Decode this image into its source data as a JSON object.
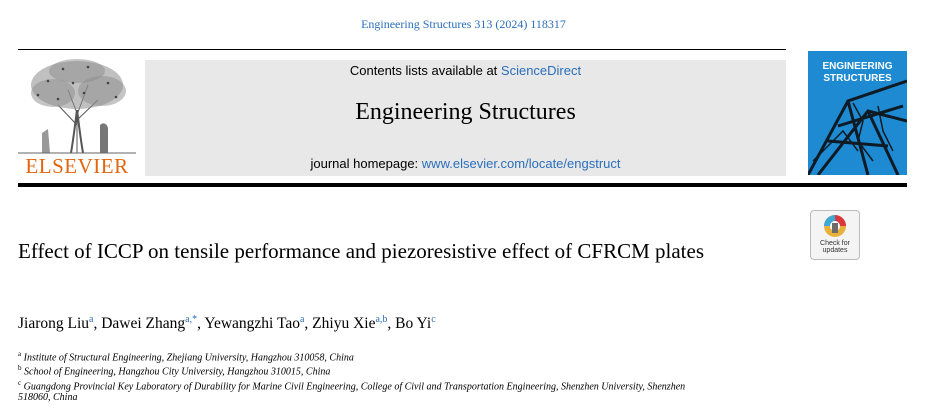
{
  "header": {
    "citation": "Engineering Structures 313 (2024) 118317",
    "contents_prefix": "Contents lists available at ",
    "contents_link": "ScienceDirect",
    "journal_name": "Engineering Structures",
    "homepage_prefix": "journal homepage: ",
    "homepage_url": "www.elsevier.com/locate/engstruct",
    "publisher": "ELSEVIER",
    "cover_title_line1": "ENGINEERING",
    "cover_title_line2": "STRUCTURES"
  },
  "crossmark": {
    "line1": "Check for",
    "line2": "updates"
  },
  "article": {
    "title": "Effect of ICCP on tensile performance and piezoresistive effect of CFRCM plates",
    "authors": [
      {
        "name": "Jiarong Liu",
        "sup": "a",
        "sep": ", "
      },
      {
        "name": "Dawei Zhang",
        "sup": "a,*",
        "sep": ", "
      },
      {
        "name": "Yewangzhi Tao",
        "sup": "a",
        "sep": ", "
      },
      {
        "name": "Zhiyu Xie",
        "sup": "a,b",
        "sep": ", "
      },
      {
        "name": "Bo Yi",
        "sup": "c",
        "sep": ""
      }
    ],
    "affiliations": [
      {
        "mark": "a",
        "text": "Institute of Structural Engineering, Zhejiang University, Hangzhou 310058, China"
      },
      {
        "mark": "b",
        "text": "School of Engineering, Hangzhou City University, Hangzhou 310015, China"
      },
      {
        "mark": "c",
        "text": "Guangdong Provincial Key Laboratory of Durability for Marine Civil Engineering, College of Civil and Transportation Engineering, Shenzhen University, Shenzhen"
      },
      {
        "mark": "",
        "text": "518060, China"
      }
    ]
  },
  "colors": {
    "link": "#2a6ebb",
    "elsevier_orange": "#e2650f",
    "masthead_bg": "#e8e8e8",
    "cover_blue": "#1d8ad2"
  }
}
